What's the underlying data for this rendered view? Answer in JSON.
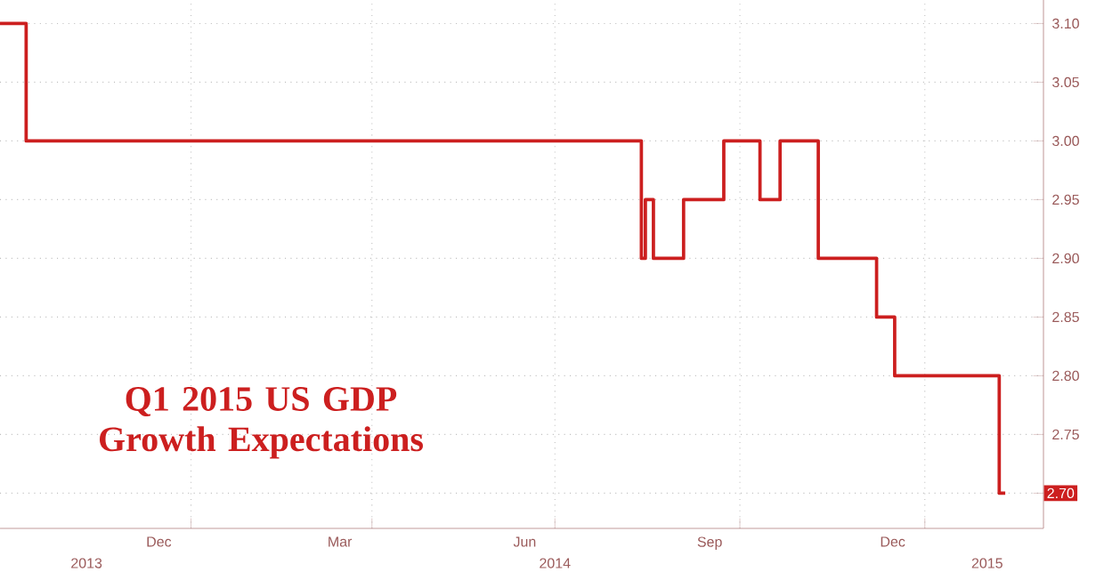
{
  "chart_data": {
    "type": "step",
    "title": "Q1 2015 US GDP Growth Expectations",
    "x": [
      "2013-09-28",
      "2013-10-11",
      "2014-08-13",
      "2014-08-15",
      "2014-08-19",
      "2014-09-03",
      "2014-09-23",
      "2014-10-11",
      "2014-10-21",
      "2014-11-09",
      "2014-12-08",
      "2014-12-17",
      "2015-02-07",
      "2015-02-10"
    ],
    "series": [
      {
        "color": "#cc1f1f",
        "values": [
          3.1,
          3.0,
          2.9,
          2.95,
          2.9,
          2.95,
          3.0,
          2.95,
          3.0,
          2.9,
          2.85,
          2.8,
          2.7,
          2.7
        ]
      }
    ],
    "xlim": [
      "2013-09-28",
      "2015-03-01"
    ],
    "xticks": [
      {
        "value": "2014-01-01",
        "label": null
      },
      {
        "value": "2014-04-01",
        "label": null
      },
      {
        "value": "2014-07-01",
        "label": null
      },
      {
        "value": "2014-10-01",
        "label": null
      },
      {
        "value": "2015-01-01",
        "label": null
      },
      {
        "value": "2013-12-16",
        "label": "Dec"
      },
      {
        "value": "2014-03-16",
        "label": "Mar"
      },
      {
        "value": "2014-06-16",
        "label": "Jun"
      },
      {
        "value": "2014-09-16",
        "label": "Sep"
      },
      {
        "value": "2014-12-16",
        "label": "Dec"
      }
    ],
    "x2ticks": [
      {
        "value": "2013-11-10",
        "label": "2013"
      },
      {
        "value": "2014-07-01",
        "label": "2014"
      },
      {
        "value": "2015-02-01",
        "label": "2015"
      }
    ],
    "ylim": [
      2.67,
      3.12
    ],
    "yticks": [
      {
        "value": 2.7,
        "label": null
      },
      {
        "value": 2.75,
        "label": "2.75"
      },
      {
        "value": 2.8,
        "label": "2.80"
      },
      {
        "value": 2.85,
        "label": "2.85"
      },
      {
        "value": 2.9,
        "label": "2.90"
      },
      {
        "value": 2.95,
        "label": "2.95"
      },
      {
        "value": 3.0,
        "label": "3.00"
      },
      {
        "value": 3.05,
        "label": "3.05"
      },
      {
        "value": 3.1,
        "label": "3.10"
      }
    ],
    "x2lim": [
      "2013-09-28",
      "2015-03-01"
    ],
    "annotations": [
      "2.70"
    ],
    "grid": true,
    "marker": "none",
    "line_style": "solid"
  }
}
